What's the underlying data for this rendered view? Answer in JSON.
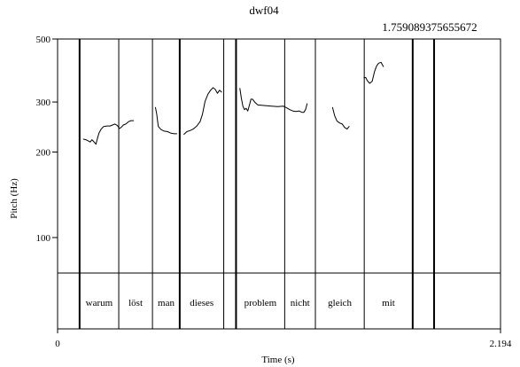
{
  "chart_data": {
    "type": "line",
    "title": "dwf04",
    "xlabel": "Time (s)",
    "ylabel": "Pitch (Hz)",
    "xlim": [
      0,
      2.194
    ],
    "ylim": [
      75,
      500
    ],
    "y_scale": "log",
    "x_tick_labels": [
      {
        "value": 0,
        "label": "0"
      },
      {
        "value": 2.194,
        "label": "2.194"
      }
    ],
    "y_ticks": [
      100,
      200,
      300,
      500
    ],
    "cursor_label": "1.759089375655672",
    "boundaries": [
      {
        "t": 0.109,
        "style": "bold"
      },
      {
        "t": 0.303,
        "style": "thin"
      },
      {
        "t": 0.47,
        "style": "thin"
      },
      {
        "t": 0.605,
        "style": "bold"
      },
      {
        "t": 0.823,
        "style": "thin"
      },
      {
        "t": 0.884,
        "style": "bold"
      },
      {
        "t": 1.125,
        "style": "thin"
      },
      {
        "t": 1.277,
        "style": "thin"
      },
      {
        "t": 1.519,
        "style": "thin"
      },
      {
        "t": 1.759,
        "style": "bold"
      },
      {
        "t": 1.865,
        "style": "bold"
      }
    ],
    "words": [
      {
        "label": "warum",
        "start": 0.109,
        "end": 0.303
      },
      {
        "label": "löst",
        "start": 0.303,
        "end": 0.47
      },
      {
        "label": "man",
        "start": 0.47,
        "end": 0.605
      },
      {
        "label": "dieses",
        "start": 0.605,
        "end": 0.823
      },
      {
        "label": "problem",
        "start": 0.884,
        "end": 1.125
      },
      {
        "label": "nicht",
        "start": 1.125,
        "end": 1.277
      },
      {
        "label": "gleich",
        "start": 1.277,
        "end": 1.519
      },
      {
        "label": "mit",
        "start": 1.519,
        "end": 1.759
      }
    ],
    "series": [
      {
        "values": [
          [
            0.128,
            222
          ],
          [
            0.14,
            221
          ],
          [
            0.152,
            219
          ],
          [
            0.162,
            217
          ],
          [
            0.17,
            221
          ],
          [
            0.178,
            218
          ],
          [
            0.19,
            213
          ],
          [
            0.198,
            224
          ],
          [
            0.206,
            234
          ],
          [
            0.216,
            241
          ],
          [
            0.228,
            246
          ],
          [
            0.244,
            247
          ],
          [
            0.26,
            247
          ],
          [
            0.272,
            249
          ],
          [
            0.284,
            251
          ],
          [
            0.296,
            248
          ],
          [
            0.306,
            242
          ],
          [
            0.314,
            244
          ],
          [
            0.326,
            249
          ],
          [
            0.338,
            251
          ],
          [
            0.352,
            256
          ],
          [
            0.364,
            258
          ],
          [
            0.376,
            258
          ]
        ]
      },
      {
        "values": [
          [
            0.485,
            287
          ],
          [
            0.491,
            272
          ],
          [
            0.499,
            246
          ],
          [
            0.512,
            240
          ],
          [
            0.528,
            237
          ],
          [
            0.545,
            236
          ],
          [
            0.562,
            233
          ],
          [
            0.578,
            232
          ],
          [
            0.59,
            232
          ]
        ]
      },
      {
        "values": [
          [
            0.626,
            231
          ],
          [
            0.64,
            236
          ],
          [
            0.656,
            238
          ],
          [
            0.672,
            241
          ],
          [
            0.69,
            247
          ],
          [
            0.706,
            256
          ],
          [
            0.718,
            272
          ],
          [
            0.73,
            301
          ],
          [
            0.745,
            320
          ],
          [
            0.758,
            330
          ],
          [
            0.77,
            337
          ],
          [
            0.78,
            333
          ],
          [
            0.792,
            322
          ],
          [
            0.802,
            330
          ],
          [
            0.812,
            325
          ]
        ]
      },
      {
        "values": [
          [
            0.903,
            335
          ],
          [
            0.91,
            310
          ],
          [
            0.918,
            290
          ],
          [
            0.926,
            282
          ],
          [
            0.934,
            285
          ],
          [
            0.942,
            279
          ],
          [
            0.952,
            296
          ],
          [
            0.958,
            307
          ],
          [
            0.966,
            307
          ],
          [
            0.978,
            299
          ],
          [
            0.992,
            293
          ],
          [
            1.01,
            292
          ],
          [
            1.034,
            291
          ],
          [
            1.06,
            290
          ],
          [
            1.09,
            289
          ],
          [
            1.118,
            290
          ],
          [
            1.132,
            287
          ],
          [
            1.15,
            282
          ],
          [
            1.166,
            279
          ],
          [
            1.18,
            278
          ],
          [
            1.196,
            279
          ],
          [
            1.21,
            276
          ],
          [
            1.22,
            276
          ],
          [
            1.228,
            282
          ],
          [
            1.236,
            296
          ]
        ]
      },
      {
        "values": [
          [
            1.362,
            287
          ],
          [
            1.372,
            269
          ],
          [
            1.384,
            257
          ],
          [
            1.398,
            253
          ],
          [
            1.41,
            251
          ],
          [
            1.422,
            244
          ],
          [
            1.434,
            241
          ],
          [
            1.444,
            246
          ]
        ]
      },
      {
        "values": [
          [
            1.518,
            365
          ],
          [
            1.526,
            366
          ],
          [
            1.534,
            357
          ],
          [
            1.546,
            349
          ],
          [
            1.558,
            355
          ],
          [
            1.57,
            384
          ],
          [
            1.58,
            402
          ],
          [
            1.59,
            411
          ],
          [
            1.602,
            414
          ],
          [
            1.614,
            400
          ]
        ]
      }
    ]
  }
}
